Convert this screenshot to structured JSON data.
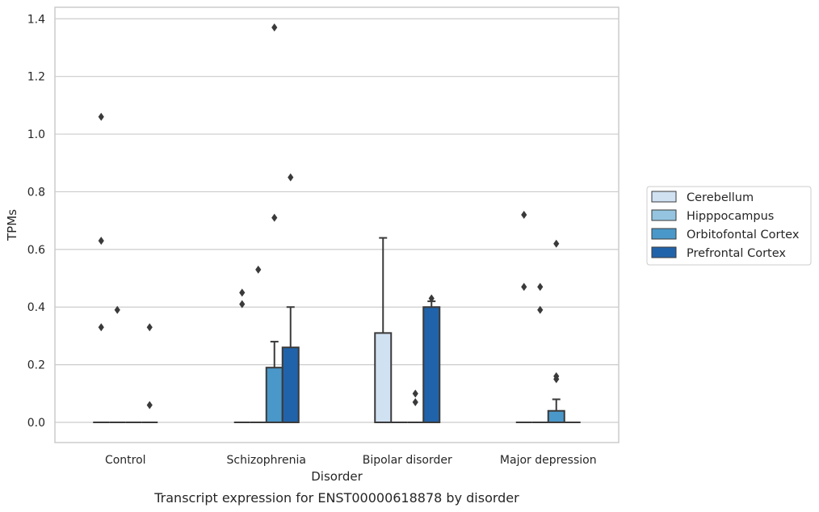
{
  "chart_data": {
    "type": "box",
    "caption": "Transcript expression for ENST00000618878 by disorder",
    "xlabel": "Disorder",
    "ylabel": "TPMs",
    "ylim": [
      -0.07,
      1.44
    ],
    "yticks": [
      0.0,
      0.2,
      0.4,
      0.6,
      0.8,
      1.0,
      1.2,
      1.4
    ],
    "ytick_labels": [
      "0.0",
      "0.2",
      "0.4",
      "0.6",
      "0.8",
      "1.0",
      "1.2",
      "1.4"
    ],
    "grid": "horizontal",
    "legend_position": "right",
    "categories": [
      "Control",
      "Schizophrenia",
      "Bipolar disorder",
      "Major depression"
    ],
    "series": [
      {
        "name": "Cerebellum",
        "color": "#d0e1f2",
        "boxes": [
          {
            "q1": 0,
            "median": 0,
            "q3": 0,
            "whislo": 0,
            "whishi": 0,
            "fliers": [
              1.06,
              0.63,
              0.33
            ]
          },
          {
            "q1": 0,
            "median": 0,
            "q3": 0,
            "whislo": 0,
            "whishi": 0,
            "fliers": [
              0.45,
              0.41
            ]
          },
          {
            "q1": 0,
            "median": 0,
            "q3": 0.31,
            "whislo": 0,
            "whishi": 0.64,
            "fliers": []
          },
          {
            "q1": 0,
            "median": 0,
            "q3": 0,
            "whislo": 0,
            "whishi": 0,
            "fliers": [
              0.72,
              0.47
            ]
          }
        ]
      },
      {
        "name": "Hipppocampus",
        "color": "#94c4df",
        "boxes": [
          {
            "q1": 0,
            "median": 0,
            "q3": 0,
            "whislo": 0,
            "whishi": 0,
            "fliers": [
              0.39
            ]
          },
          {
            "q1": 0,
            "median": 0,
            "q3": 0,
            "whislo": 0,
            "whishi": 0,
            "fliers": [
              0.53
            ]
          },
          {
            "q1": 0,
            "median": 0,
            "q3": 0,
            "whislo": 0,
            "whishi": 0,
            "fliers": []
          },
          {
            "q1": 0,
            "median": 0,
            "q3": 0,
            "whislo": 0,
            "whishi": 0,
            "fliers": [
              0.47,
              0.39
            ]
          }
        ]
      },
      {
        "name": "Orbitofontal Cortex",
        "color": "#4a98c9",
        "boxes": [
          {
            "q1": 0,
            "median": 0,
            "q3": 0,
            "whislo": 0,
            "whishi": 0,
            "fliers": []
          },
          {
            "q1": 0,
            "median": 0,
            "q3": 0.19,
            "whislo": 0,
            "whishi": 0.28,
            "fliers": [
              1.37,
              0.71
            ]
          },
          {
            "q1": 0,
            "median": 0,
            "q3": 0,
            "whislo": 0,
            "whishi": 0,
            "fliers": [
              0.1,
              0.07
            ]
          },
          {
            "q1": 0,
            "median": 0,
            "q3": 0.04,
            "whislo": 0,
            "whishi": 0.08,
            "fliers": [
              0.62,
              0.16,
              0.15
            ]
          }
        ]
      },
      {
        "name": "Prefrontal Cortex",
        "color": "#2163aa",
        "boxes": [
          {
            "q1": 0,
            "median": 0,
            "q3": 0,
            "whislo": 0,
            "whishi": 0,
            "fliers": [
              0.33,
              0.06
            ]
          },
          {
            "q1": 0,
            "median": 0,
            "q3": 0.26,
            "whislo": 0,
            "whishi": 0.4,
            "fliers": [
              0.85
            ]
          },
          {
            "q1": 0,
            "median": 0,
            "q3": 0.4,
            "whislo": 0,
            "whishi": 0.42,
            "fliers": [
              0.43
            ]
          },
          {
            "q1": 0,
            "median": 0,
            "q3": 0,
            "whislo": 0,
            "whishi": 0,
            "fliers": []
          }
        ]
      }
    ]
  }
}
